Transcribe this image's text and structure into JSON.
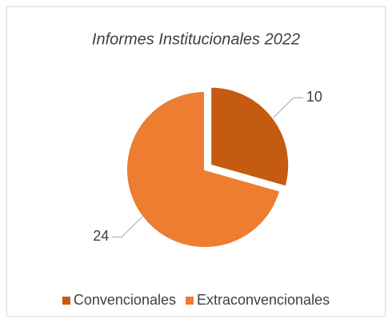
{
  "chart_data": {
    "type": "pie",
    "title": "Informes Institucionales 2022",
    "categories": [
      "Convencionales",
      "Extraconvencionales"
    ],
    "values": [
      10,
      24
    ],
    "colors": [
      "#C55A11",
      "#ED7D31"
    ],
    "legend": "bottom"
  }
}
